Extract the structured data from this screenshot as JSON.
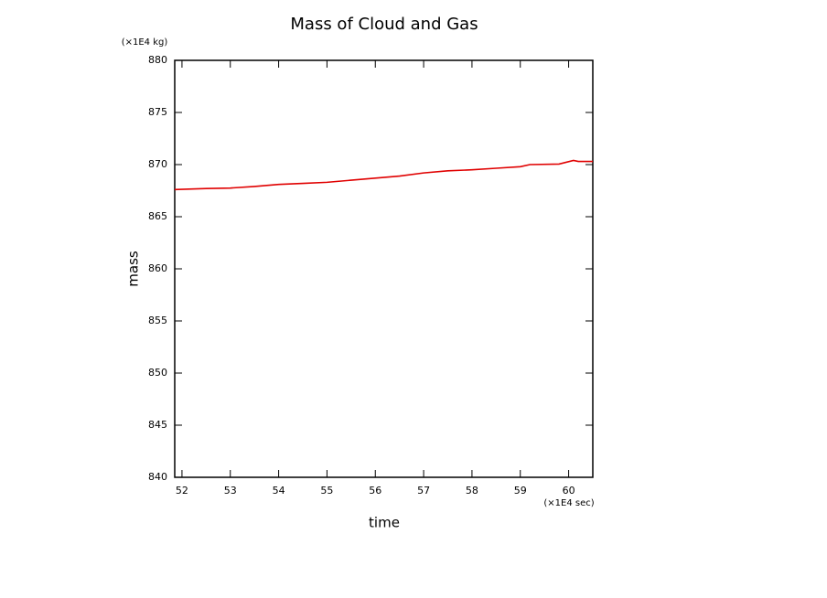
{
  "chart_data": {
    "type": "line",
    "title": "Mass of Cloud and Gas",
    "y_unit": "(×1E4 kg)",
    "x_unit": "(×1E4 sec)",
    "ylabel": "mass",
    "xlabel": "time",
    "x": [
      51.85,
      52.5,
      53.0,
      53.5,
      54.0,
      54.5,
      55.0,
      55.5,
      56.0,
      56.5,
      57.0,
      57.5,
      58.0,
      58.5,
      59.0,
      59.2,
      59.8,
      60.1,
      60.2,
      60.5
    ],
    "series": [
      {
        "name": "mass",
        "color": "#e00000",
        "values": [
          867.6,
          867.7,
          867.75,
          867.9,
          868.1,
          868.2,
          868.3,
          868.5,
          868.7,
          868.9,
          869.2,
          869.4,
          869.5,
          869.65,
          869.8,
          870.0,
          870.05,
          870.4,
          870.3,
          870.3
        ]
      }
    ],
    "xlim": [
      51.85,
      60.5
    ],
    "xticks": [
      52,
      53,
      54,
      55,
      56,
      57,
      58,
      59,
      60
    ],
    "ylim": [
      840,
      880
    ],
    "yticks": [
      840,
      845,
      850,
      855,
      860,
      865,
      870,
      875,
      880
    ]
  }
}
